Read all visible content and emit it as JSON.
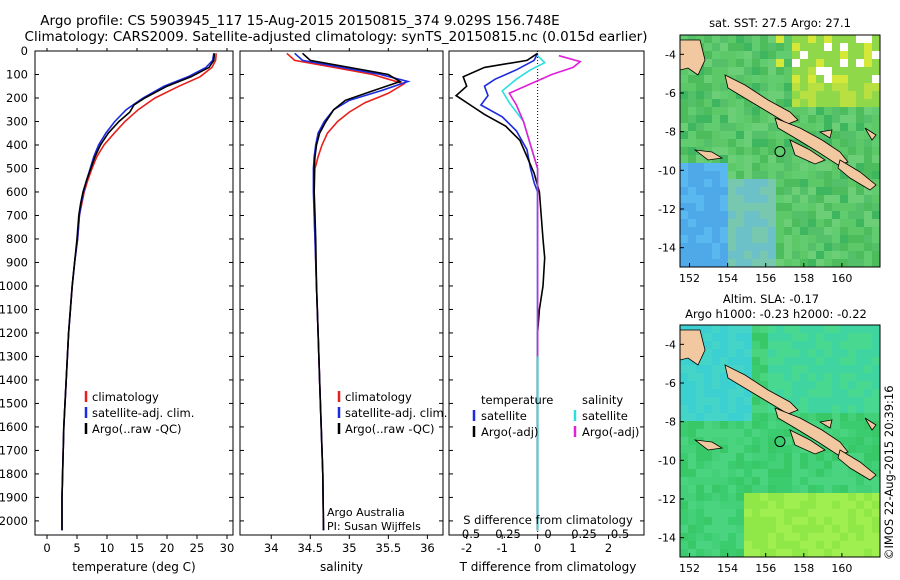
{
  "header": {
    "line1": "Argo profile: CS 5903945_117 15-Aug-2015 20150815_374 9.029S 156.748E",
    "line2": "Climatology: CARS2009. Satellite-adjusted climatology: synTS_20150815.nc (0.015d earlier)"
  },
  "colors": {
    "climatology": "#e8201c",
    "satellite": "#1c2ae0",
    "argo": "#000000",
    "sat_salinity": "#29e0e0",
    "argo_salinity": "#e020d8"
  },
  "depth_ticks": [
    "0",
    "100",
    "200",
    "300",
    "400",
    "500",
    "600",
    "700",
    "800",
    "900",
    "1000",
    "1100",
    "1200",
    "1300",
    "1400",
    "1500",
    "1600",
    "1700",
    "1800",
    "1900",
    "2000"
  ],
  "chart_data": [
    {
      "type": "line",
      "id": "temperature",
      "xlabel": "temperature (deg C)",
      "ylabel": "depth",
      "xlim": [
        -2,
        31
      ],
      "ylim": [
        2060,
        0
      ],
      "xticks": [
        "0",
        "5",
        "10",
        "15",
        "20",
        "25",
        "30"
      ],
      "legend": [
        "climatology",
        "satellite-adj. clim.",
        "Argo(..raw -QC)"
      ],
      "series": [
        {
          "name": "climatology",
          "color": "#e8201c",
          "points": [
            [
              28.2,
              10
            ],
            [
              28.1,
              40
            ],
            [
              27.5,
              70
            ],
            [
              25.5,
              110
            ],
            [
              22,
              150
            ],
            [
              18,
              200
            ],
            [
              15.2,
              250
            ],
            [
              13,
              300
            ],
            [
              11.2,
              350
            ],
            [
              9.5,
              400
            ],
            [
              8.3,
              450
            ],
            [
              7.5,
              500
            ],
            [
              6.8,
              550
            ],
            [
              6.2,
              600
            ],
            [
              5.8,
              650
            ],
            [
              5.4,
              700
            ],
            [
              5.1,
              800
            ],
            [
              4.6,
              900
            ],
            [
              4.2,
              1000
            ],
            [
              3.9,
              1100
            ],
            [
              3.6,
              1200
            ],
            [
              3.4,
              1300
            ],
            [
              3.2,
              1400
            ],
            [
              3.0,
              1500
            ],
            [
              2.8,
              1600
            ],
            [
              2.7,
              1700
            ],
            [
              2.6,
              1800
            ],
            [
              2.5,
              1900
            ],
            [
              2.5,
              2040
            ]
          ]
        },
        {
          "name": "satellite-adj. clim.",
          "color": "#1c2ae0",
          "points": [
            [
              27.8,
              10
            ],
            [
              27.6,
              40
            ],
            [
              26.5,
              70
            ],
            [
              23.5,
              110
            ],
            [
              19.5,
              150
            ],
            [
              16,
              200
            ],
            [
              13.2,
              250
            ],
            [
              11.3,
              300
            ],
            [
              9.8,
              350
            ],
            [
              8.6,
              400
            ],
            [
              7.8,
              450
            ],
            [
              7.2,
              500
            ],
            [
              6.6,
              550
            ],
            [
              6.1,
              600
            ],
            [
              5.7,
              650
            ],
            [
              5.4,
              700
            ],
            [
              5.1,
              800
            ],
            [
              4.6,
              900
            ],
            [
              4.2,
              1000
            ],
            [
              3.9,
              1100
            ],
            [
              3.6,
              1200
            ],
            [
              3.4,
              1300
            ],
            [
              3.2,
              1400
            ],
            [
              3.0,
              1500
            ],
            [
              2.8,
              1600
            ],
            [
              2.7,
              1700
            ],
            [
              2.6,
              1800
            ],
            [
              2.5,
              1900
            ],
            [
              2.5,
              2040
            ]
          ]
        },
        {
          "name": "Argo(..raw -QC)",
          "color": "#000000",
          "points": [
            [
              27.9,
              10
            ],
            [
              27.8,
              40
            ],
            [
              27,
              70
            ],
            [
              24,
              110
            ],
            [
              20,
              150
            ],
            [
              16.3,
              200
            ],
            [
              14.5,
              230
            ],
            [
              13.8,
              260
            ],
            [
              12,
              300
            ],
            [
              10.2,
              350
            ],
            [
              8.9,
              400
            ],
            [
              8,
              450
            ],
            [
              7.3,
              500
            ],
            [
              6.6,
              550
            ],
            [
              6,
              600
            ],
            [
              5.6,
              650
            ],
            [
              5.3,
              700
            ],
            [
              5,
              800
            ],
            [
              4.6,
              900
            ],
            [
              4.2,
              1000
            ],
            [
              3.9,
              1100
            ],
            [
              3.6,
              1200
            ],
            [
              3.4,
              1300
            ],
            [
              3.2,
              1400
            ],
            [
              3.0,
              1500
            ],
            [
              2.8,
              1600
            ],
            [
              2.7,
              1700
            ],
            [
              2.6,
              1800
            ],
            [
              2.5,
              1900
            ],
            [
              2.5,
              2040
            ]
          ]
        }
      ]
    },
    {
      "type": "line",
      "id": "salinity",
      "xlabel": "salinity",
      "xlim": [
        33.6,
        36.2
      ],
      "ylim": [
        2060,
        0
      ],
      "xticks": [
        "34",
        "34.5",
        "35",
        "35.5",
        "36"
      ],
      "legend": [
        "climatology",
        "satellite-adj. clim.",
        "Argo(..raw -QC)"
      ],
      "annotation": [
        "Argo Australia",
        "PI: Susan Wijffels"
      ],
      "series": [
        {
          "name": "climatology",
          "color": "#e8201c",
          "points": [
            [
              34.2,
              10
            ],
            [
              34.3,
              40
            ],
            [
              34.8,
              70
            ],
            [
              35.3,
              100
            ],
            [
              35.7,
              140
            ],
            [
              35.5,
              180
            ],
            [
              35.2,
              220
            ],
            [
              35.0,
              260
            ],
            [
              34.85,
              300
            ],
            [
              34.72,
              350
            ],
            [
              34.65,
              400
            ],
            [
              34.6,
              450
            ],
            [
              34.56,
              500
            ],
            [
              34.55,
              600
            ],
            [
              34.55,
              700
            ],
            [
              34.56,
              800
            ],
            [
              34.58,
              1000
            ],
            [
              34.6,
              1200
            ],
            [
              34.62,
              1400
            ],
            [
              34.64,
              1600
            ],
            [
              34.66,
              1800
            ],
            [
              34.67,
              2040
            ]
          ]
        },
        {
          "name": "satellite-adj. clim.",
          "color": "#1c2ae0",
          "points": [
            [
              34.3,
              10
            ],
            [
              34.4,
              40
            ],
            [
              34.9,
              70
            ],
            [
              35.4,
              100
            ],
            [
              35.75,
              130
            ],
            [
              35.4,
              170
            ],
            [
              35.0,
              210
            ],
            [
              34.8,
              250
            ],
            [
              34.68,
              300
            ],
            [
              34.6,
              350
            ],
            [
              34.57,
              400
            ],
            [
              34.55,
              450
            ],
            [
              34.54,
              500
            ],
            [
              34.54,
              600
            ],
            [
              34.55,
              700
            ],
            [
              34.56,
              800
            ],
            [
              34.58,
              1000
            ],
            [
              34.6,
              1200
            ],
            [
              34.62,
              1400
            ],
            [
              34.64,
              1600
            ],
            [
              34.66,
              1800
            ],
            [
              34.67,
              2040
            ]
          ]
        },
        {
          "name": "Argo(..raw -QC)",
          "color": "#000000",
          "points": [
            [
              34.4,
              10
            ],
            [
              34.5,
              40
            ],
            [
              35,
              70
            ],
            [
              35.5,
              100
            ],
            [
              35.65,
              130
            ],
            [
              35.3,
              170
            ],
            [
              34.95,
              210
            ],
            [
              34.8,
              250
            ],
            [
              34.7,
              300
            ],
            [
              34.62,
              350
            ],
            [
              34.58,
              400
            ],
            [
              34.56,
              450
            ],
            [
              34.55,
              500
            ],
            [
              34.55,
              600
            ],
            [
              34.56,
              700
            ],
            [
              34.57,
              800
            ],
            [
              34.58,
              1000
            ],
            [
              34.6,
              1200
            ],
            [
              34.62,
              1400
            ],
            [
              34.64,
              1600
            ],
            [
              34.66,
              1800
            ],
            [
              34.67,
              2040
            ]
          ]
        }
      ]
    },
    {
      "type": "line",
      "id": "difference",
      "xlabel": "T difference from climatology",
      "xlabel_top": "S difference from climatology",
      "xlim": [
        -2.5,
        3
      ],
      "ylim": [
        2060,
        0
      ],
      "xticks_T": [
        "-2",
        "-1",
        "0",
        "1",
        "2"
      ],
      "xticks_S": [
        "-0.5",
        "-0.25",
        "0",
        "0.25",
        "0.5"
      ],
      "legend_temperature": [
        "temperature",
        "satellite",
        "Argo(-adj)"
      ],
      "legend_salinity": [
        "salinity",
        "satellite",
        "Argo(-adj)"
      ],
      "series": [
        {
          "name": "T satellite",
          "color": "#1c2ae0",
          "points": [
            [
              0,
              10
            ],
            [
              -0.1,
              40
            ],
            [
              -0.6,
              80
            ],
            [
              -1.2,
              120
            ],
            [
              -1.5,
              150
            ],
            [
              -1.4,
              190
            ],
            [
              -1.6,
              230
            ],
            [
              -1.0,
              280
            ],
            [
              -0.6,
              340
            ],
            [
              -0.3,
              420
            ],
            [
              -0.2,
              500
            ],
            [
              -0.1,
              560
            ],
            [
              0,
              600
            ],
            [
              0,
              2040
            ]
          ]
        },
        {
          "name": "T Argo(-adj)",
          "color": "#000000",
          "points": [
            [
              0,
              10
            ],
            [
              -0.3,
              40
            ],
            [
              -1.5,
              70
            ],
            [
              -2.1,
              110
            ],
            [
              -2.0,
              150
            ],
            [
              -2.3,
              190
            ],
            [
              -1.9,
              230
            ],
            [
              -1.5,
              270
            ],
            [
              -0.9,
              320
            ],
            [
              -0.5,
              380
            ],
            [
              -0.3,
              450
            ],
            [
              -0.1,
              520
            ],
            [
              0.05,
              600
            ],
            [
              0.1,
              700
            ],
            [
              0.15,
              800
            ],
            [
              0.2,
              880
            ],
            [
              0.15,
              1000
            ],
            [
              0.05,
              1100
            ],
            [
              0,
              1200
            ],
            [
              0,
              2040
            ]
          ]
        },
        {
          "name": "S satellite",
          "color": "#29e0e0",
          "points": [
            [
              0,
              20
            ],
            [
              0.05,
              50
            ],
            [
              -0.05,
              80
            ],
            [
              -0.15,
              120
            ],
            [
              -0.25,
              170
            ],
            [
              -0.2,
              220
            ],
            [
              -0.1,
              300
            ],
            [
              -0.05,
              400
            ],
            [
              0,
              500
            ],
            [
              0,
              2040
            ]
          ]
        },
        {
          "name": "S Argo(-adj)",
          "color": "#e020d8",
          "points": [
            [
              0.15,
              20
            ],
            [
              0.3,
              45
            ],
            [
              0.25,
              70
            ],
            [
              0.1,
              100
            ],
            [
              -0.05,
              140
            ],
            [
              -0.2,
              180
            ],
            [
              -0.15,
              230
            ],
            [
              -0.1,
              300
            ],
            [
              -0.05,
              400
            ],
            [
              0,
              500
            ],
            [
              0,
              1300
            ]
          ]
        }
      ]
    },
    {
      "type": "heatmap",
      "id": "sst_map",
      "title": "sat. SST: 27.5 Argo: 27.1",
      "xlim": [
        151.5,
        162
      ],
      "ylim": [
        -15,
        -3
      ],
      "xticks": [
        "152",
        "154",
        "156",
        "158",
        "160"
      ],
      "yticks": [
        "-4",
        "-6",
        "-8",
        "-10",
        "-12",
        "-14"
      ],
      "marker": [
        156.748,
        -9.029
      ]
    },
    {
      "type": "heatmap",
      "id": "sla_map",
      "title_line1": "Altim. SLA: -0.17",
      "title_line2": "Argo h1000: -0.23 h2000: -0.22",
      "xlim": [
        151.5,
        162
      ],
      "ylim": [
        -15,
        -3
      ],
      "xticks": [
        "152",
        "154",
        "156",
        "158",
        "160"
      ],
      "yticks": [
        "-4",
        "-6",
        "-8",
        "-10",
        "-12",
        "-14"
      ],
      "marker": [
        156.748,
        -9.029
      ]
    }
  ],
  "stamp": "©IMOS 22-Aug-2015 20:39:16"
}
